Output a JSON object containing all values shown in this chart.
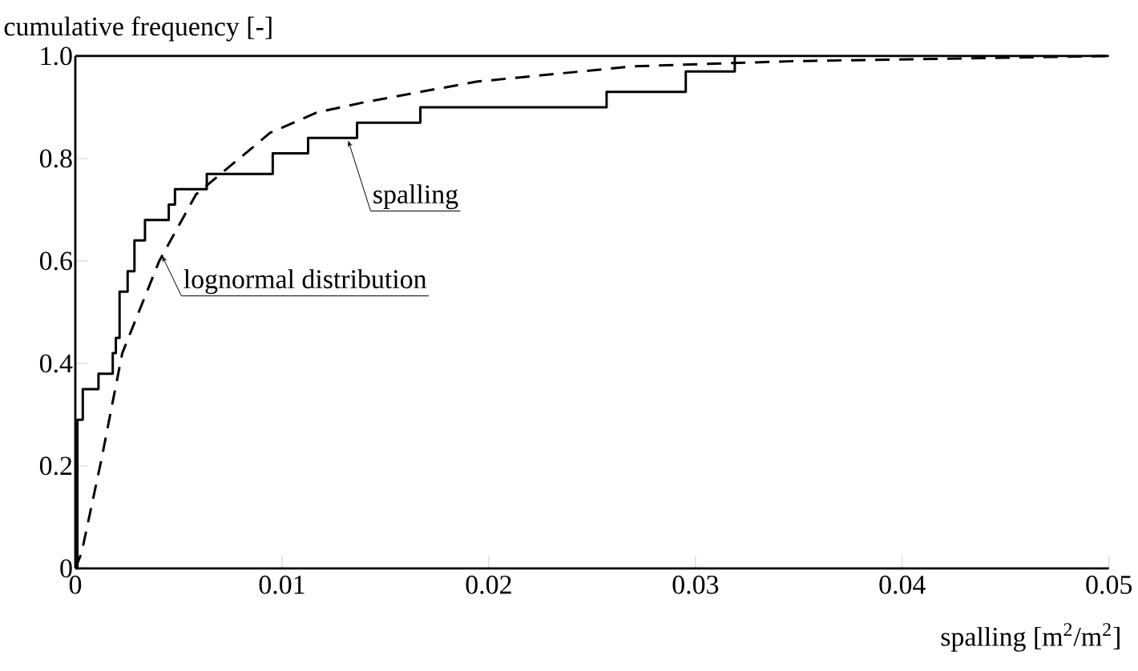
{
  "chart_data": {
    "type": "line",
    "ylabel": "cumulative frequency [-]",
    "xlabel": "spalling [m$^{2}$/m$^{2}$]",
    "xlim": [
      0,
      0.05
    ],
    "ylim": [
      0,
      1.0
    ],
    "xticks": [
      0,
      0.01,
      0.02,
      0.03,
      0.04,
      0.05
    ],
    "yticks": [
      0,
      0.2,
      0.4,
      0.6,
      0.8,
      {
        "value": 1.0,
        "label": "1.0"
      }
    ],
    "series": [
      {
        "type": "step",
        "color": "#000000",
        "line_style": "solid",
        "x": [
          0,
          0.0001,
          0.00036,
          0.00112,
          0.00181,
          0.00196,
          0.00214,
          0.00253,
          0.00286,
          0.00337,
          0.00452,
          0.00482,
          0.00636,
          0.00955,
          0.01126,
          0.01363,
          0.01669,
          0.0257,
          0.02953,
          0.0319
        ],
        "values": [
          0,
          0.29,
          0.35,
          0.38,
          0.42,
          0.45,
          0.54,
          0.58,
          0.64,
          0.68,
          0.71,
          0.74,
          0.77,
          0.81,
          0.84,
          0.87,
          0.9,
          0.93,
          0.97,
          1.0
        ]
      },
      {
        "type": "line",
        "color": "#000000",
        "line_style": "dashed",
        "x": [
          0,
          0.0003,
          0.00125,
          0.00227,
          0.00406,
          0.00584,
          0.00942,
          0.0117,
          0.014,
          0.0194,
          0.027,
          0.0347,
          0.0423,
          0.05
        ],
        "values": [
          0,
          0.03,
          0.21,
          0.42,
          0.6,
          0.73,
          0.85,
          0.89,
          0.91,
          0.95,
          0.98,
          0.99,
          0.995,
          1.0
        ]
      }
    ],
    "annotations": [
      {
        "text": "spalling",
        "x": 0.0132,
        "y": 0.835
      },
      {
        "text": "lognormal distribution",
        "x": 0.0042,
        "y": 0.61
      }
    ]
  }
}
